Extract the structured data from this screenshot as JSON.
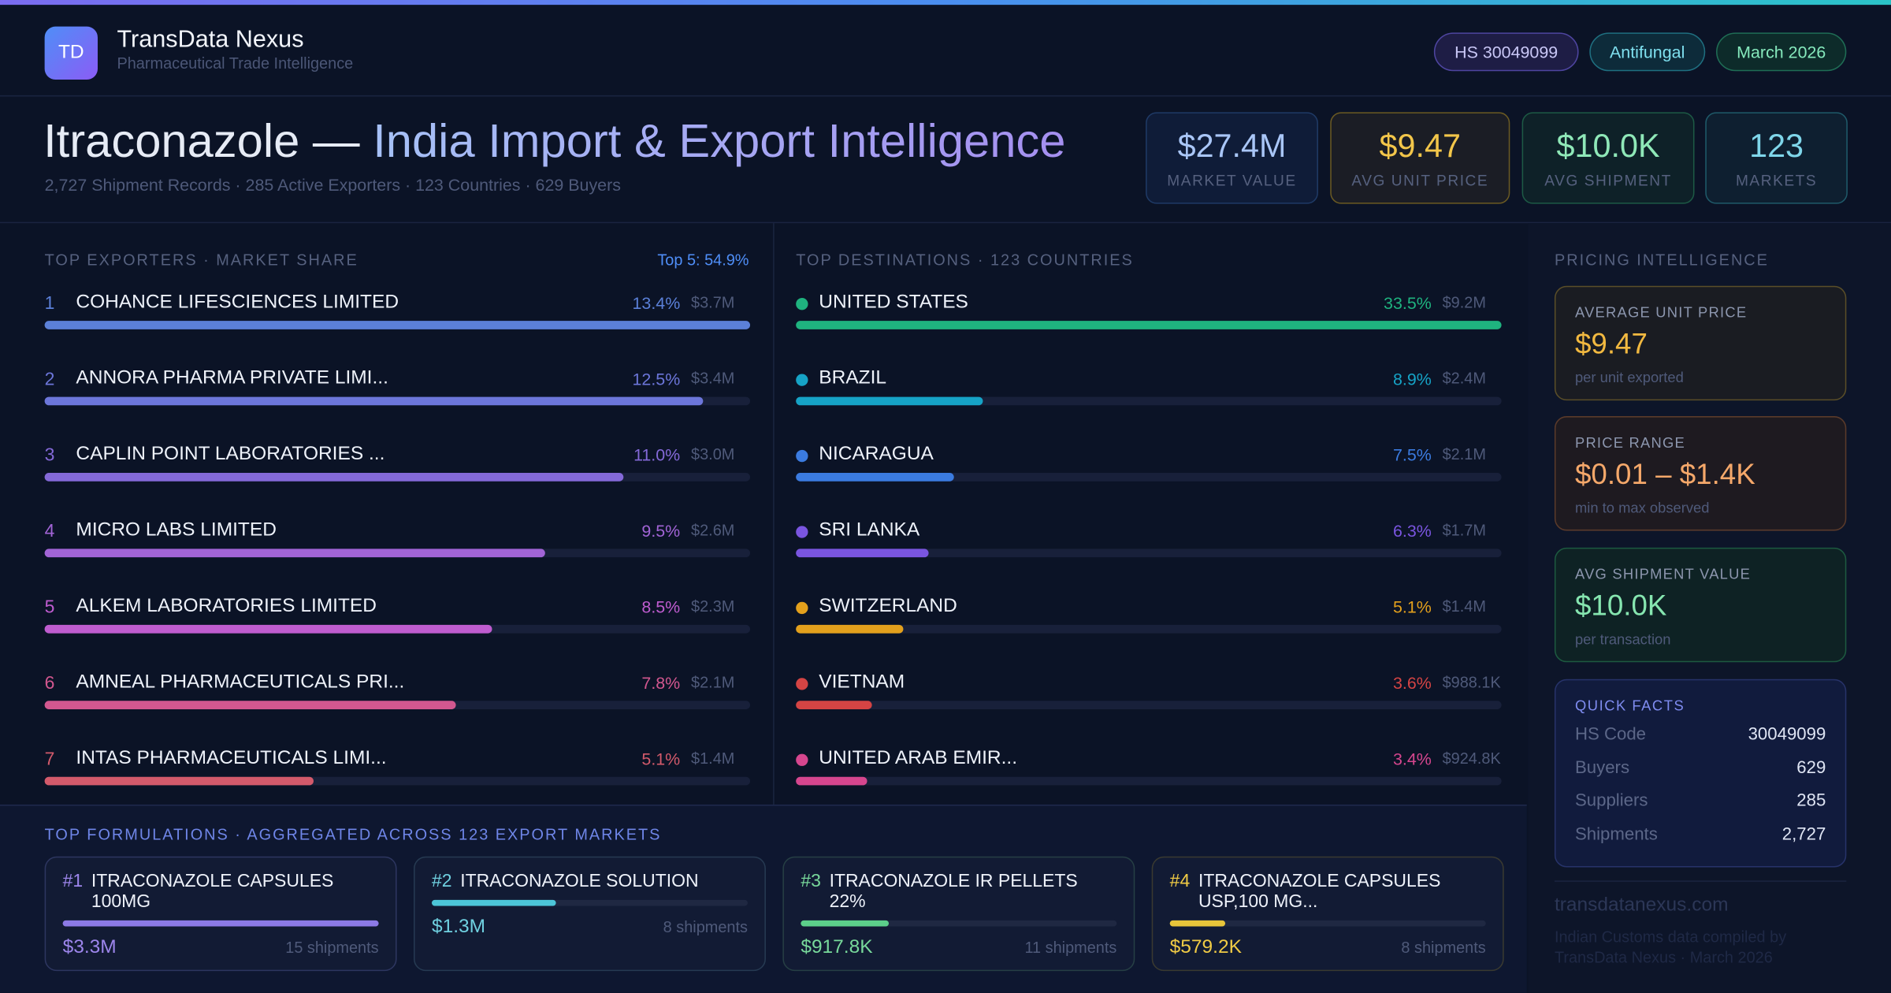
{
  "header": {
    "logo": "TD",
    "brand": "TransData Nexus",
    "tagline": "Pharmaceutical Trade Intelligence",
    "tags": [
      "HS 30049099",
      "Antifungal",
      "March 2026"
    ]
  },
  "hero": {
    "title_main": "Itraconazole —",
    "title_accent": "India Import & Export Intelligence",
    "subtitle": "2,727 Shipment Records · 285 Active Exporters · 123 Countries · 629 Buyers",
    "kpis": [
      {
        "value": "$27.4M",
        "label": "MARKET VALUE"
      },
      {
        "value": "$9.47",
        "label": "AVG UNIT PRICE"
      },
      {
        "value": "$10.0K",
        "label": "AVG SHIPMENT"
      },
      {
        "value": "123",
        "label": "MARKETS"
      }
    ]
  },
  "exporters": {
    "heading": "TOP EXPORTERS · MARKET SHARE",
    "summary": "Top 5: 54.9%",
    "rows": [
      {
        "rank": 1,
        "name": "COHANCE LIFESCIENCES LIMITED",
        "share": 13.4,
        "share_label": "13.4%",
        "value": "$3.7M"
      },
      {
        "rank": 2,
        "name": "ANNORA PHARMA PRIVATE LIMI...",
        "share": 12.5,
        "share_label": "12.5%",
        "value": "$3.4M"
      },
      {
        "rank": 3,
        "name": "CAPLIN POINT LABORATORIES ...",
        "share": 11.0,
        "share_label": "11.0%",
        "value": "$3.0M"
      },
      {
        "rank": 4,
        "name": "MICRO LABS LIMITED",
        "share": 9.5,
        "share_label": "9.5%",
        "value": "$2.6M"
      },
      {
        "rank": 5,
        "name": "ALKEM LABORATORIES LIMITED",
        "share": 8.5,
        "share_label": "8.5%",
        "value": "$2.3M"
      },
      {
        "rank": 6,
        "name": "AMNEAL PHARMACEUTICALS PRI...",
        "share": 7.8,
        "share_label": "7.8%",
        "value": "$2.1M"
      },
      {
        "rank": 7,
        "name": "INTAS PHARMACEUTICALS LIMI...",
        "share": 5.1,
        "share_label": "5.1%",
        "value": "$1.4M"
      }
    ]
  },
  "destinations": {
    "heading": "TOP DESTINATIONS · 123 COUNTRIES",
    "rows": [
      {
        "name": "UNITED STATES",
        "share": 33.5,
        "share_label": "33.5%",
        "value": "$9.2M"
      },
      {
        "name": "BRAZIL",
        "share": 8.9,
        "share_label": "8.9%",
        "value": "$2.4M"
      },
      {
        "name": "NICARAGUA",
        "share": 7.5,
        "share_label": "7.5%",
        "value": "$2.1M"
      },
      {
        "name": "SRI LANKA",
        "share": 6.3,
        "share_label": "6.3%",
        "value": "$1.7M"
      },
      {
        "name": "SWITZERLAND",
        "share": 5.1,
        "share_label": "5.1%",
        "value": "$1.4M"
      },
      {
        "name": "VIETNAM",
        "share": 3.6,
        "share_label": "3.6%",
        "value": "$988.1K"
      },
      {
        "name": "UNITED ARAB EMIR...",
        "share": 3.4,
        "share_label": "3.4%",
        "value": "$924.8K"
      }
    ]
  },
  "formulations": {
    "heading": "TOP FORMULATIONS · AGGREGATED ACROSS 123 EXPORT MARKETS",
    "items": [
      {
        "rank": "#1",
        "name": "ITRACONAZOLE CAPSULES 100MG",
        "value": 3300000,
        "value_label": "$3.3M",
        "shipments": "15 shipments"
      },
      {
        "rank": "#2",
        "name": "ITRACONAZOLE SOLUTION",
        "value": 1300000,
        "value_label": "$1.3M",
        "shipments": "8 shipments"
      },
      {
        "rank": "#3",
        "name": "ITRACONAZOLE IR PELLETS 22%",
        "value": 917800,
        "value_label": "$917.8K",
        "shipments": "11 shipments"
      },
      {
        "rank": "#4",
        "name": "ITRACONAZOLE CAPSULES USP,100 MG...",
        "value": 579200,
        "value_label": "$579.2K",
        "shipments": "8 shipments"
      }
    ]
  },
  "pricing": {
    "heading": "PRICING INTELLIGENCE",
    "cards": [
      {
        "label": "AVERAGE UNIT PRICE",
        "value": "$9.47",
        "note": "per unit exported"
      },
      {
        "label": "PRICE RANGE",
        "value": "$0.01 – $1.4K",
        "note": "min to max observed"
      },
      {
        "label": "AVG SHIPMENT VALUE",
        "value": "$10.0K",
        "note": "per transaction"
      }
    ],
    "quick_facts": {
      "heading": "QUICK FACTS",
      "rows": [
        [
          "HS Code",
          "30049099"
        ],
        [
          "Buyers",
          "629"
        ],
        [
          "Suppliers",
          "285"
        ],
        [
          "Shipments",
          "2,727"
        ]
      ]
    },
    "site": "transdatanexus.com",
    "footnote": "Indian Customs data compiled by TransData Nexus · March 2026"
  }
}
